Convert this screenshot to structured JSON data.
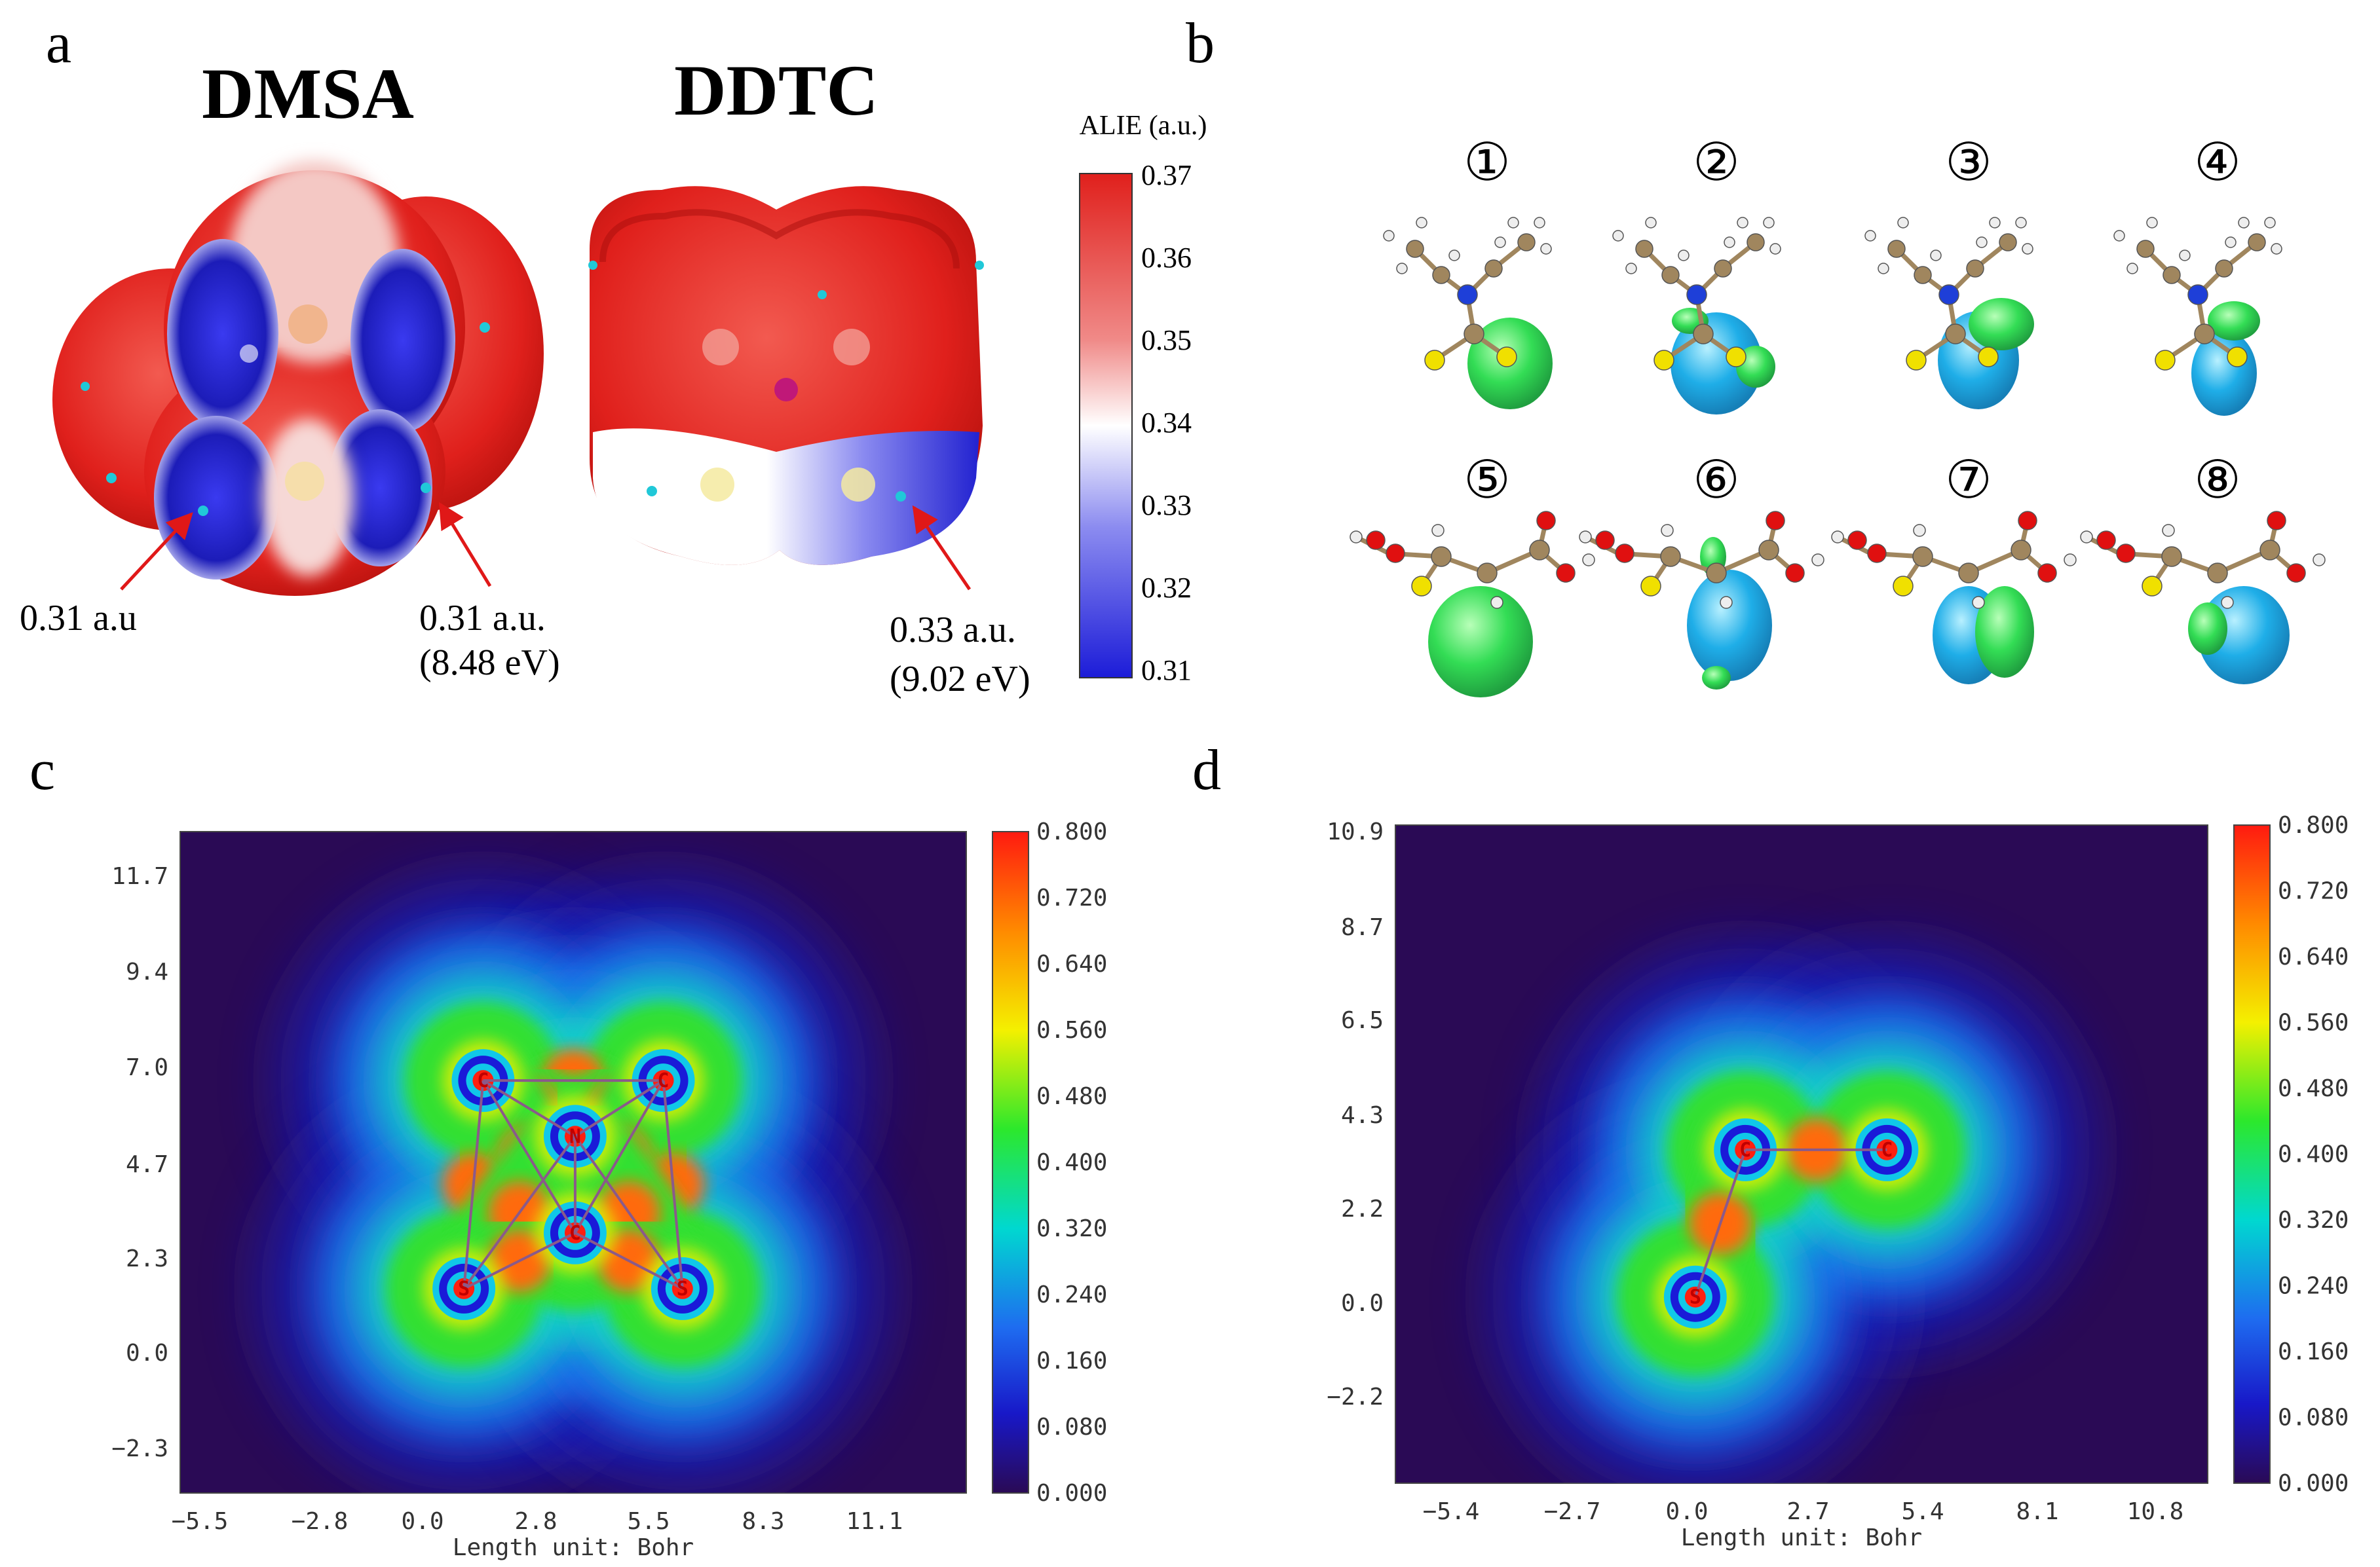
{
  "colors": {
    "alie_high": "#e0201c",
    "alie_mid": "#ffffff",
    "alie_low": "#1c1cd8",
    "orbital_green": "#33dd55",
    "orbital_cyan": "#1faee8",
    "map_bg": "#2a0a55",
    "atom_carbon": "#a0865e",
    "atom_sulfur": "#f0e000",
    "atom_nitrogen": "#1e3fd8",
    "atom_oxygen": "#e01010",
    "arrow": "#e01818"
  },
  "panel_a": {
    "letter": "a",
    "title_dmsa": "DMSA",
    "title_ddtc": "DDTC",
    "colorbar": {
      "title": "ALIE (a.u.)",
      "ticks": [
        "0.37",
        "0.36",
        "0.35",
        "0.34",
        "0.33",
        "0.32",
        "0.31"
      ]
    },
    "ann1": "0.31 a.u",
    "ann2_line1": "0.31 a.u.",
    "ann2_line2": "(8.48 eV)",
    "ann3_line1": "0.33 a.u.",
    "ann3_line2": "(9.02 eV)"
  },
  "panel_b": {
    "letter": "b",
    "labels": [
      "①",
      "②",
      "③",
      "④",
      "⑤",
      "⑥",
      "⑦",
      "⑧"
    ]
  },
  "panel_c": {
    "letter": "c",
    "xlabel": "Length unit: Bohr",
    "xticks": [
      "−5.5",
      "−2.8",
      "0.0",
      "2.8",
      "5.5",
      "8.3",
      "11.1"
    ],
    "yticks": [
      "11.7",
      "9.4",
      "7.0",
      "4.7",
      "2.3",
      "0.0",
      "−2.3"
    ],
    "cbar_ticks": [
      "0.800",
      "0.720",
      "0.640",
      "0.560",
      "0.480",
      "0.400",
      "0.320",
      "0.240",
      "0.160",
      "0.080",
      "0.000"
    ],
    "atoms": [
      {
        "sym": "C",
        "x": 1.4,
        "y": 6.6
      },
      {
        "sym": "C",
        "x": 6.1,
        "y": 6.6
      },
      {
        "sym": "N",
        "x": 3.8,
        "y": 5.1
      },
      {
        "sym": "C",
        "x": 3.8,
        "y": 2.5
      },
      {
        "sym": "S",
        "x": 0.9,
        "y": 1.0
      },
      {
        "sym": "S",
        "x": 6.6,
        "y": 1.0
      }
    ]
  },
  "panel_d": {
    "letter": "d",
    "xlabel": "Length unit: Bohr",
    "xticks": [
      "−5.4",
      "−2.7",
      "0.0",
      "2.7",
      "5.4",
      "8.1",
      "10.8"
    ],
    "yticks": [
      "10.9",
      "8.7",
      "6.5",
      "4.3",
      "2.2",
      "0.0",
      "−2.2"
    ],
    "cbar_ticks": [
      "0.800",
      "0.720",
      "0.640",
      "0.560",
      "0.480",
      "0.400",
      "0.320",
      "0.240",
      "0.160",
      "0.080",
      "0.000"
    ],
    "atoms": [
      {
        "sym": "C",
        "x": 1.4,
        "y": 3.7
      },
      {
        "sym": "C",
        "x": 4.8,
        "y": 3.7
      },
      {
        "sym": "S",
        "x": 0.2,
        "y": 0.3
      }
    ]
  }
}
